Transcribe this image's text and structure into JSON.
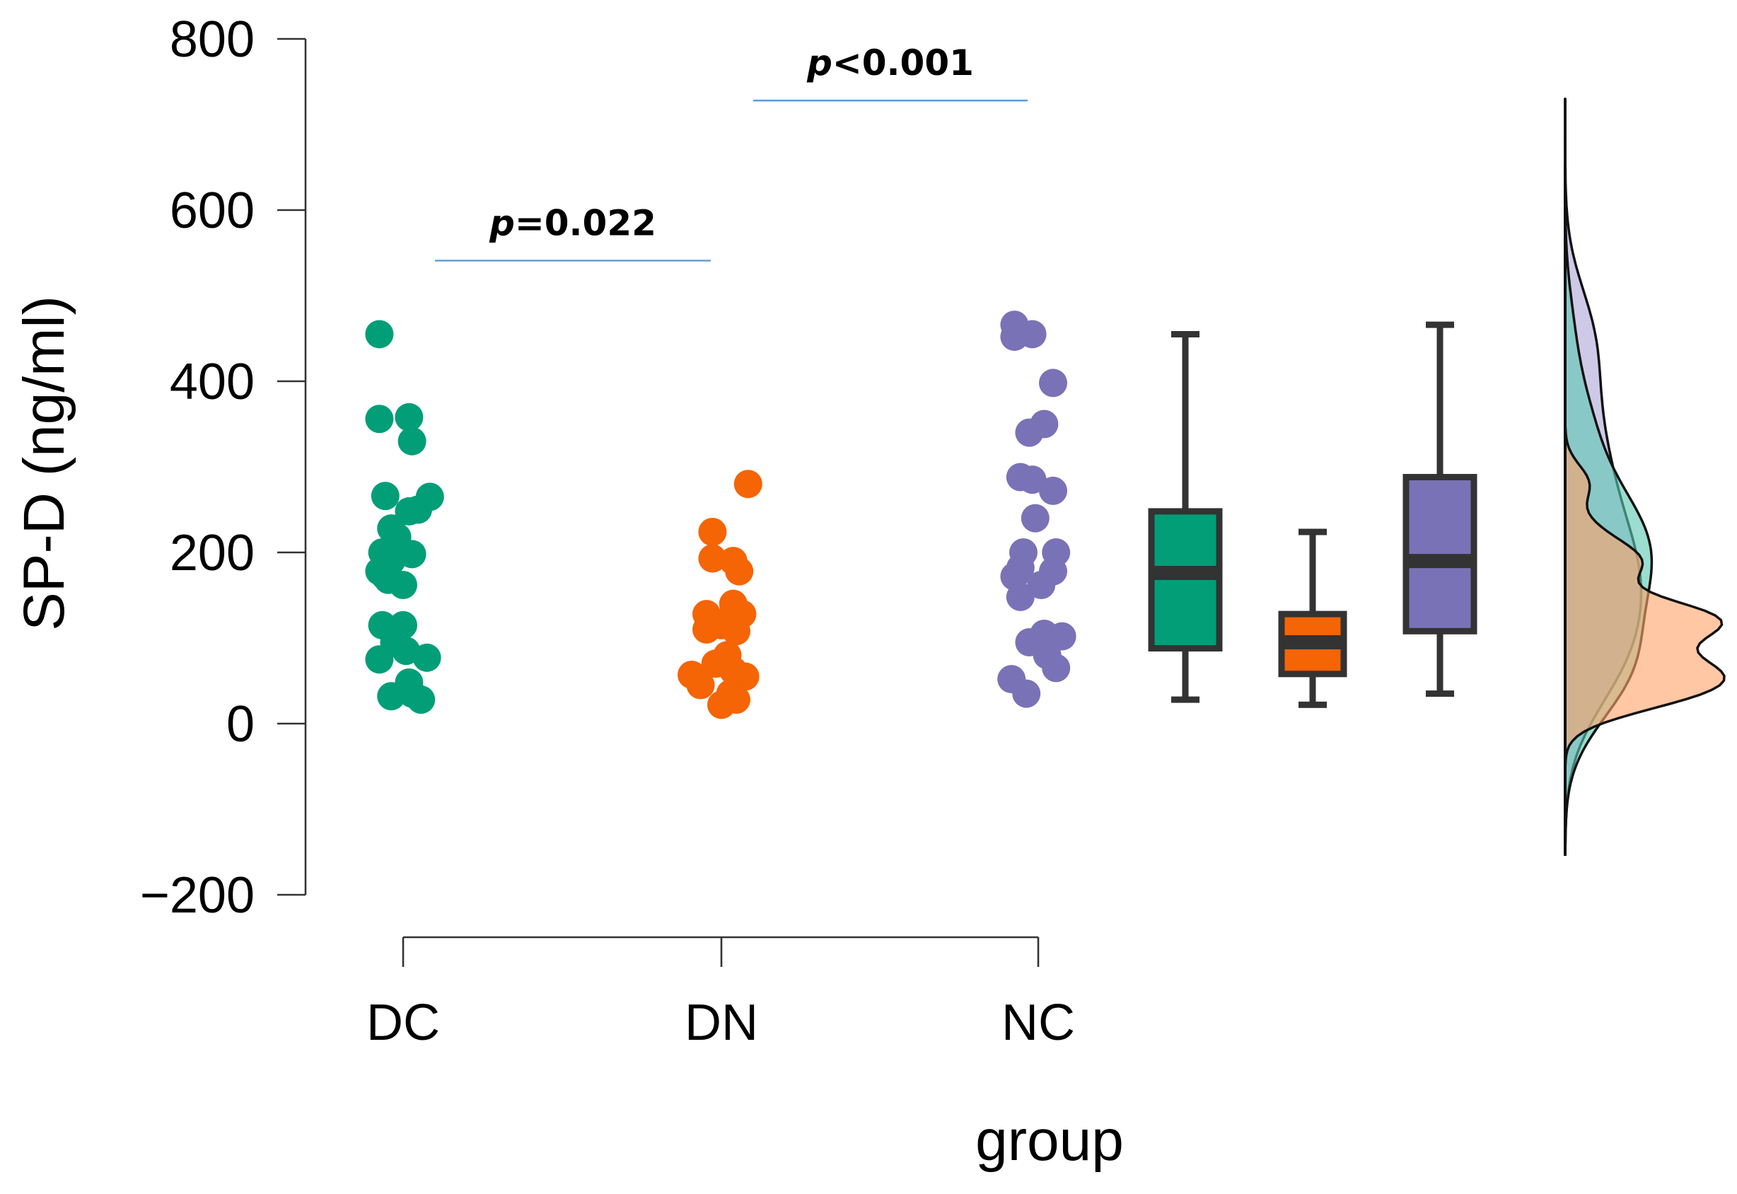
{
  "chart_data": {
    "type": "scatter",
    "title": "",
    "xlabel": "group",
    "ylabel": "SP-D (ng/ml)",
    "ylim": [
      -200,
      800
    ],
    "yticks": [
      -200,
      0,
      200,
      400,
      600,
      800
    ],
    "ytick_labels": [
      "−200",
      "0",
      "200",
      "400",
      "600",
      "800"
    ],
    "categories": [
      "DC",
      "DN",
      "NC"
    ],
    "colors": {
      "DC": "#019e78",
      "DN": "#f56405",
      "NC": "#7a72b6"
    },
    "density_colors": {
      "DC": "#5ec9b3",
      "DN": "#ffa56b",
      "NC": "#b0a8d8"
    },
    "series": [
      {
        "name": "DC",
        "points": [
          {
            "j": -0.08,
            "v": 455
          },
          {
            "j": -0.08,
            "v": 356
          },
          {
            "j": 0.02,
            "v": 358
          },
          {
            "j": 0.03,
            "v": 330
          },
          {
            "j": -0.06,
            "v": 266
          },
          {
            "j": 0.09,
            "v": 265
          },
          {
            "j": 0.05,
            "v": 250
          },
          {
            "j": 0.02,
            "v": 248
          },
          {
            "j": -0.04,
            "v": 228
          },
          {
            "j": -0.02,
            "v": 218
          },
          {
            "j": -0.07,
            "v": 200
          },
          {
            "j": 0.03,
            "v": 198
          },
          {
            "j": -0.04,
            "v": 190
          },
          {
            "j": -0.08,
            "v": 178
          },
          {
            "j": -0.06,
            "v": 172
          },
          {
            "j": 0.0,
            "v": 162
          },
          {
            "j": -0.05,
            "v": 168
          },
          {
            "j": -0.07,
            "v": 115
          },
          {
            "j": 0.0,
            "v": 115
          },
          {
            "j": -0.03,
            "v": 95
          },
          {
            "j": 0.01,
            "v": 85
          },
          {
            "j": -0.08,
            "v": 75
          },
          {
            "j": 0.08,
            "v": 77
          },
          {
            "j": 0.02,
            "v": 48
          },
          {
            "j": -0.04,
            "v": 32
          },
          {
            "j": 0.06,
            "v": 28
          },
          {
            "j": 0.03,
            "v": 35
          }
        ],
        "box": {
          "min": 28,
          "q1": 88,
          "median": 176,
          "q3": 248,
          "max": 455
        }
      },
      {
        "name": "DN",
        "points": [
          {
            "j": 0.09,
            "v": 280
          },
          {
            "j": -0.03,
            "v": 224
          },
          {
            "j": -0.03,
            "v": 193
          },
          {
            "j": 0.04,
            "v": 190
          },
          {
            "j": 0.06,
            "v": 178
          },
          {
            "j": 0.04,
            "v": 140
          },
          {
            "j": -0.05,
            "v": 128
          },
          {
            "j": 0.07,
            "v": 128
          },
          {
            "j": -0.03,
            "v": 120
          },
          {
            "j": 0.0,
            "v": 115
          },
          {
            "j": 0.05,
            "v": 108
          },
          {
            "j": -0.05,
            "v": 110
          },
          {
            "j": 0.02,
            "v": 80
          },
          {
            "j": -0.02,
            "v": 70
          },
          {
            "j": 0.04,
            "v": 62
          },
          {
            "j": -0.1,
            "v": 57
          },
          {
            "j": 0.08,
            "v": 55
          },
          {
            "j": -0.07,
            "v": 45
          },
          {
            "j": 0.03,
            "v": 35
          },
          {
            "j": 0.0,
            "v": 22
          },
          {
            "j": 0.05,
            "v": 28
          }
        ],
        "box": {
          "min": 22,
          "q1": 58,
          "median": 95,
          "q3": 128,
          "max": 224
        }
      },
      {
        "name": "NC",
        "points": [
          {
            "j": -0.08,
            "v": 466
          },
          {
            "j": -0.08,
            "v": 452
          },
          {
            "j": -0.02,
            "v": 455
          },
          {
            "j": 0.05,
            "v": 398
          },
          {
            "j": 0.02,
            "v": 350
          },
          {
            "j": -0.03,
            "v": 340
          },
          {
            "j": -0.06,
            "v": 288
          },
          {
            "j": -0.02,
            "v": 285
          },
          {
            "j": 0.05,
            "v": 272
          },
          {
            "j": -0.01,
            "v": 240
          },
          {
            "j": -0.05,
            "v": 200
          },
          {
            "j": 0.06,
            "v": 200
          },
          {
            "j": -0.06,
            "v": 182
          },
          {
            "j": 0.05,
            "v": 178
          },
          {
            "j": -0.08,
            "v": 172
          },
          {
            "j": 0.01,
            "v": 162
          },
          {
            "j": -0.06,
            "v": 148
          },
          {
            "j": 0.02,
            "v": 105
          },
          {
            "j": 0.08,
            "v": 102
          },
          {
            "j": -0.03,
            "v": 95
          },
          {
            "j": 0.03,
            "v": 80
          },
          {
            "j": 0.06,
            "v": 65
          },
          {
            "j": -0.09,
            "v": 52
          },
          {
            "j": -0.04,
            "v": 35
          }
        ],
        "box": {
          "min": 35,
          "q1": 108,
          "median": 190,
          "q3": 288,
          "max": 466
        }
      }
    ],
    "annotations": [
      {
        "p_prefix": "p",
        "p_rest": "=0.022",
        "from": "DC",
        "to": "DN",
        "y": 541
      },
      {
        "p_prefix": "p",
        "p_rest": "<0.001",
        "from": "DN",
        "to": "NC",
        "y": 728
      }
    ],
    "grid": false
  }
}
